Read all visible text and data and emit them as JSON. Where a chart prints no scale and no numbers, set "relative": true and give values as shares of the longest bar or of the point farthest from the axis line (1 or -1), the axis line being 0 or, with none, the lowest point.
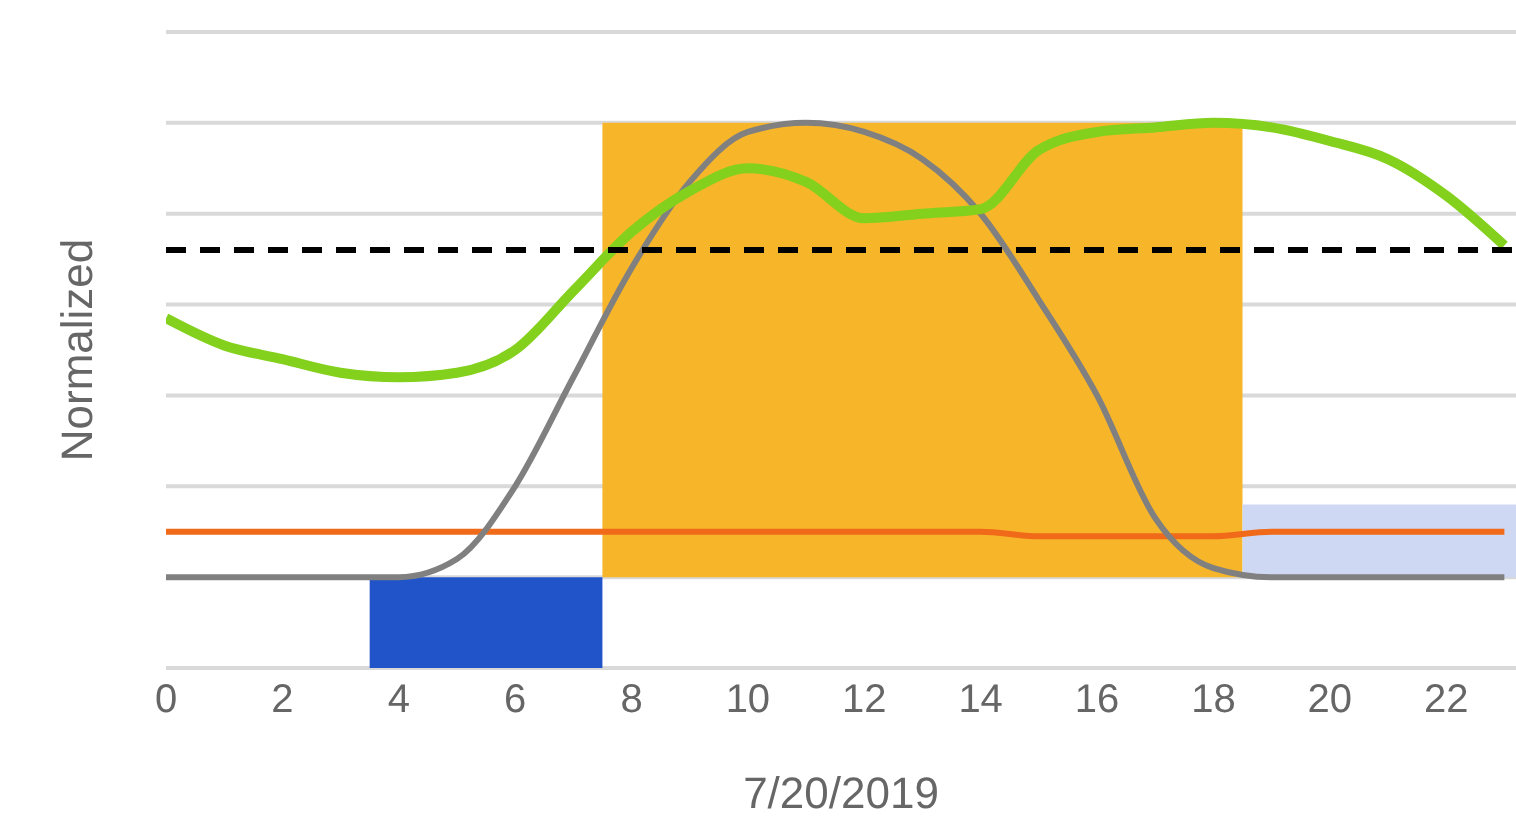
{
  "chart_data": {
    "type": "line",
    "xlabel": "7/20/2019",
    "ylabel": "Normalized",
    "relative": true,
    "grid": "y",
    "tick_labels": "x",
    "marker": "none",
    "xlim": [
      0,
      23.2
    ],
    "xticks": [
      0,
      2,
      4,
      6,
      8,
      10,
      12,
      14,
      16,
      18,
      20,
      22
    ],
    "x": [
      0,
      1,
      2,
      3,
      4,
      5,
      6,
      7,
      8,
      9,
      10,
      11,
      12,
      13,
      14,
      15,
      16,
      17,
      18,
      19,
      20,
      21,
      22,
      23
    ],
    "series": [
      {
        "type": "area",
        "color": "#f7b52a",
        "x": [
          7.5,
          18.5
        ],
        "values": [
          1,
          1
        ]
      },
      {
        "type": "area",
        "color": "#2153c9",
        "x": [
          3.5,
          7.5
        ],
        "values": [
          -0.2,
          -0.2
        ]
      },
      {
        "type": "area",
        "color": "#cfd8f3",
        "x": [
          18.5,
          23.2
        ],
        "values": [
          0.16,
          0.16
        ]
      },
      {
        "color": "#f06a1a",
        "values": [
          0.1,
          0.1,
          0.1,
          0.1,
          0.1,
          0.1,
          0.1,
          0.1,
          0.1,
          0.1,
          0.1,
          0.1,
          0.1,
          0.1,
          0.1,
          0.09,
          0.09,
          0.09,
          0.09,
          0.1,
          0.1,
          0.1,
          0.1,
          0.1
        ]
      },
      {
        "color": "#808080",
        "values": [
          0,
          0,
          0,
          0,
          0,
          0.04,
          0.2,
          0.44,
          0.68,
          0.87,
          0.98,
          1,
          0.98,
          0.92,
          0.8,
          0.61,
          0.4,
          0.13,
          0.02,
          0,
          0,
          0,
          0,
          0
        ]
      },
      {
        "color": "#83d11c",
        "values": [
          0.57,
          0.51,
          0.48,
          0.45,
          0.44,
          0.45,
          0.5,
          0.63,
          0.76,
          0.85,
          0.9,
          0.87,
          0.79,
          0.8,
          0.81,
          0.94,
          0.98,
          0.99,
          1,
          0.99,
          0.96,
          0.92,
          0.84,
          0.73
        ]
      }
    ],
    "ref_lines": [
      {
        "axis": "y",
        "value": 0.72,
        "color": "#000000",
        "line_style": "dashed"
      }
    ]
  }
}
